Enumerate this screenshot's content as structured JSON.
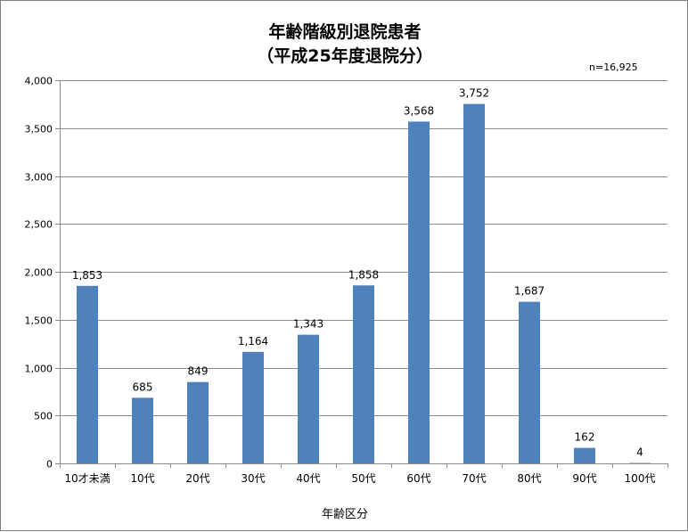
{
  "chart_data": {
    "type": "bar",
    "title": "年齢階級別退院患者",
    "subtitle": "（平成25年度退院分）",
    "note": "n=16,925",
    "xlabel": "年齢区分",
    "ylabel": "",
    "ylim": [
      0,
      4000
    ],
    "yticks": [
      0,
      500,
      1000,
      1500,
      2000,
      2500,
      3000,
      3500,
      4000
    ],
    "ytick_labels": [
      "0",
      "500",
      "1,000",
      "1,500",
      "2,000",
      "2,500",
      "3,000",
      "3,500",
      "4,000"
    ],
    "grid": true,
    "legend": "none",
    "bar_color": "#4f81bd",
    "categories": [
      "10才未満",
      "10代",
      "20代",
      "30代",
      "40代",
      "50代",
      "60代",
      "70代",
      "80代",
      "90代",
      "100代"
    ],
    "values": [
      1853,
      685,
      849,
      1164,
      1343,
      1858,
      3568,
      3752,
      1687,
      162,
      4
    ],
    "value_labels": [
      "1,853",
      "685",
      "849",
      "1,164",
      "1,343",
      "1,858",
      "3,568",
      "3,752",
      "1,687",
      "162",
      "4"
    ]
  }
}
